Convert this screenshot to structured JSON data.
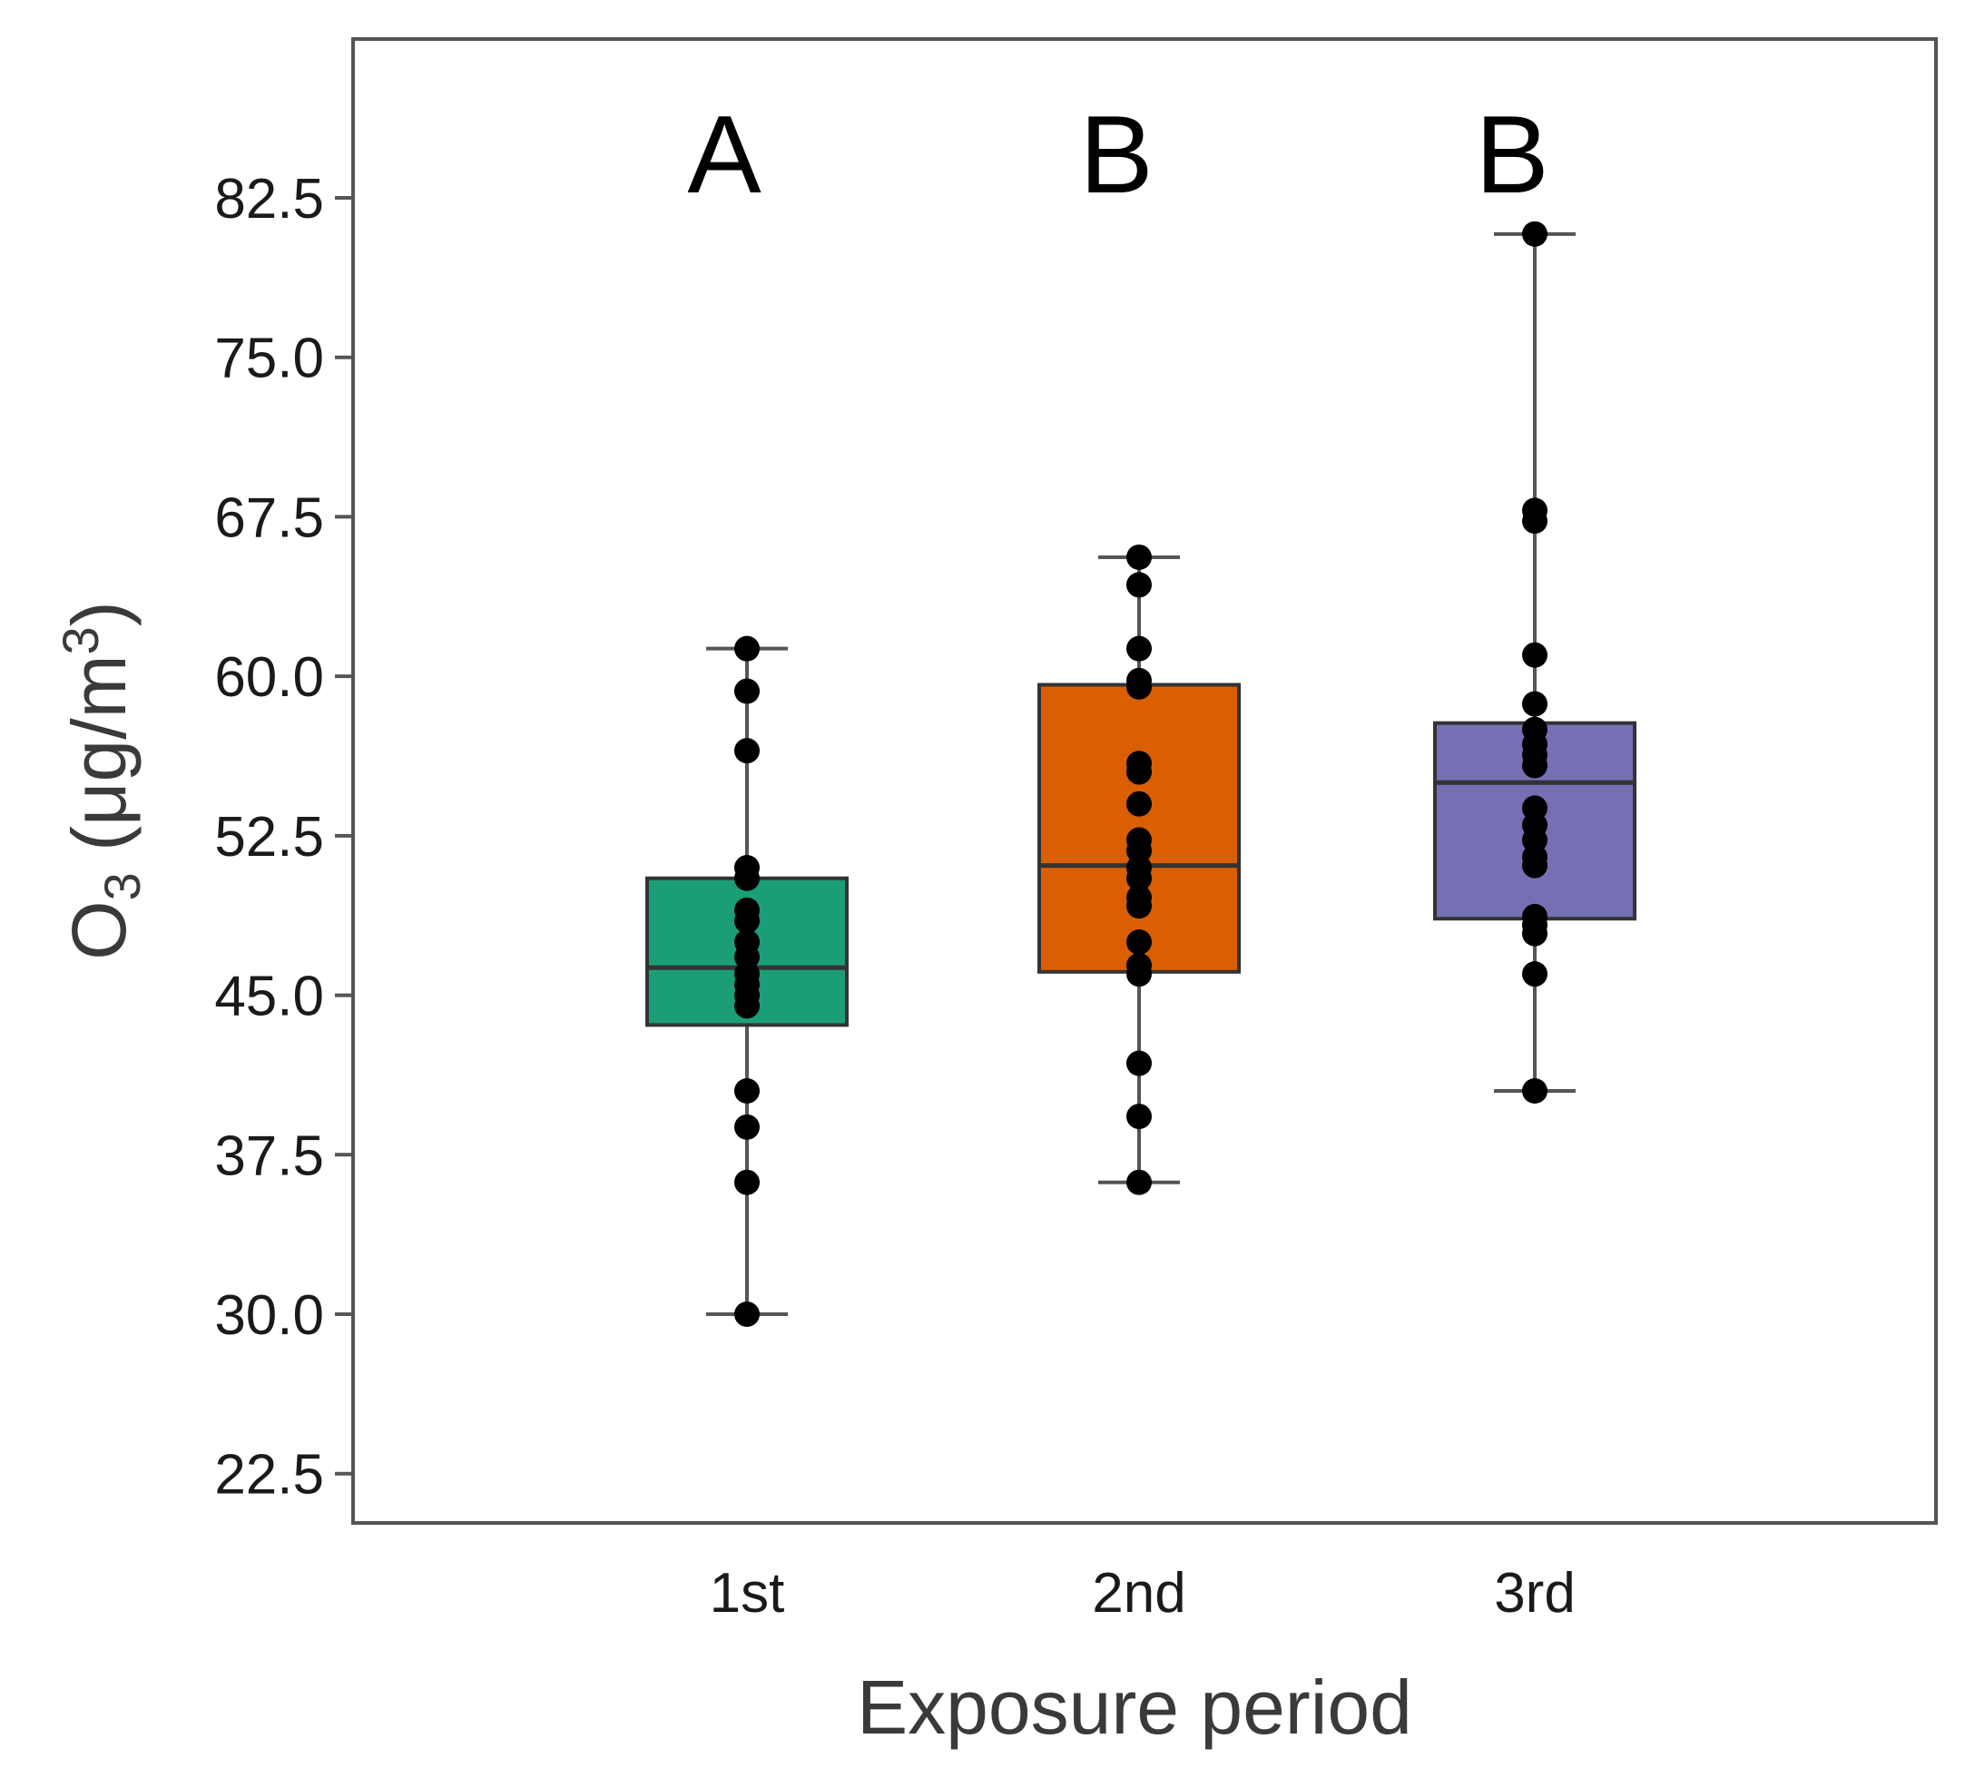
{
  "chart_data": {
    "type": "boxplot",
    "title": "",
    "xlabel": "Exposure period",
    "ylabel": {
      "prefix": "O",
      "subscript": "3",
      "middle": " (μg/m",
      "superscript": "3",
      "suffix": ")"
    },
    "ylim": [
      20.0,
      90.0
    ],
    "yticks": [
      22.5,
      30.0,
      37.5,
      45.0,
      52.5,
      60.0,
      67.5,
      75.0,
      82.5
    ],
    "ytick_labels": [
      "22.5",
      "30.0",
      "37.5",
      "45.0",
      "52.5",
      "60.0",
      "67.5",
      "75.0",
      "82.5"
    ],
    "grid": false,
    "categories": [
      "1st",
      "2nd",
      "3rd"
    ],
    "groups": [
      {
        "name": "1st",
        "letter": "A",
        "color": "#1b9e77",
        "whisker_low": 30.0,
        "q1": 43.6,
        "median": 46.3,
        "q3": 50.5,
        "whisker_high": 61.3,
        "points": [
          61.3,
          59.3,
          56.5,
          51.0,
          50.5,
          49.0,
          48.5,
          47.5,
          46.8,
          46.0,
          45.5,
          45.0,
          44.5,
          40.5,
          38.8,
          36.2,
          30.0
        ]
      },
      {
        "name": "2nd",
        "letter": "B",
        "color": "#d95f02",
        "whisker_low": 36.2,
        "q1": 46.1,
        "median": 51.1,
        "q3": 59.6,
        "whisker_high": 65.6,
        "points": [
          65.6,
          64.3,
          61.3,
          59.8,
          59.5,
          55.9,
          55.5,
          54.0,
          52.3,
          51.8,
          51.0,
          50.5,
          49.6,
          49.2,
          47.5,
          46.4,
          46.0,
          41.8,
          39.3,
          36.2
        ]
      },
      {
        "name": "3rd",
        "letter": "B",
        "color": "#7570b3",
        "whisker_low": 40.5,
        "q1": 48.6,
        "median": 55.0,
        "q3": 57.8,
        "whisker_high": 80.8,
        "points": [
          80.8,
          67.8,
          67.3,
          61.0,
          58.7,
          57.5,
          56.8,
          56.3,
          55.8,
          53.8,
          53.0,
          52.3,
          51.5,
          51.1,
          48.7,
          48.3,
          47.9,
          46.0,
          40.5
        ]
      }
    ]
  }
}
